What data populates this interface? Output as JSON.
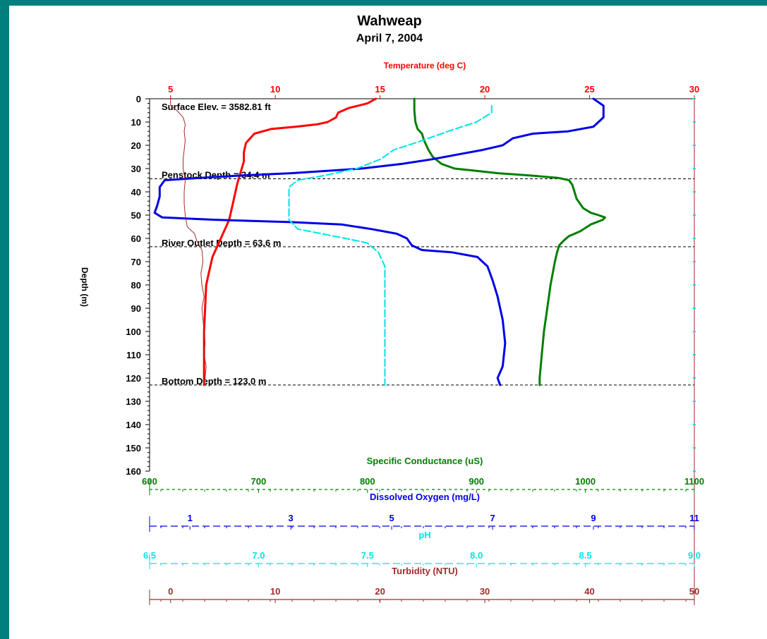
{
  "chart_data": {
    "type": "line",
    "title": "Wahweap",
    "subtitle": "April 7, 2004",
    "ylabel": "Depth (m)",
    "ylim": [
      0,
      160
    ],
    "y_ticks": [
      "0",
      "10",
      "20",
      "30",
      "40",
      "50",
      "60",
      "70",
      "80",
      "90",
      "100",
      "110",
      "120",
      "130",
      "140",
      "150",
      "160"
    ],
    "y_inverted": true,
    "annotations": [
      {
        "text": "Surface Elev. = 3582.81 ft",
        "depth": 3,
        "dashed_line": false
      },
      {
        "text": "Penstock Depth = 34.4 m",
        "depth": 34.4,
        "dashed_line": true
      },
      {
        "text": "River Outlet Depth = 63.6 m",
        "depth": 63.6,
        "dashed_line": true
      },
      {
        "text": "Bottom Depth = 123.0 m",
        "depth": 123.0,
        "dashed_line": true
      }
    ],
    "axes": {
      "temperature": {
        "label": "Temperature (deg C)",
        "min": 4,
        "max": 30,
        "ticks": [
          5,
          10,
          15,
          20,
          25,
          30
        ],
        "tick_labels": [
          "5",
          "10",
          "15",
          "20",
          "25",
          "30"
        ],
        "color": "#ff0000"
      },
      "conductance": {
        "label": "Specific Conductance (uS)",
        "min": 600,
        "max": 1100,
        "ticks": [
          600,
          700,
          800,
          900,
          1000,
          1100
        ],
        "tick_labels": [
          "600",
          "700",
          "800",
          "900",
          "1000",
          "1100"
        ],
        "color": "#007f00"
      },
      "oxygen": {
        "label": "Dissolved Oxygen (mg/L)",
        "min": 0.2,
        "max": 11,
        "ticks": [
          1,
          3,
          5,
          7,
          9,
          11
        ],
        "tick_labels": [
          "1",
          "3",
          "5",
          "7",
          "9",
          "11"
        ],
        "color": "#0000e6"
      },
      "ph": {
        "label": "pH",
        "min": 6.5,
        "max": 9.0,
        "ticks": [
          6.5,
          7.0,
          7.5,
          8.0,
          8.5,
          9.0
        ],
        "tick_labels": [
          "6.5",
          "7.0",
          "7.5",
          "8.0",
          "8.5",
          "9.0"
        ],
        "color": "#00e5e5"
      },
      "turbidity": {
        "label": "Turbidity (NTU)",
        "min": -2,
        "max": 50,
        "ticks": [
          0,
          10,
          20,
          30,
          40,
          50
        ],
        "tick_labels": [
          "0",
          "10",
          "20",
          "30",
          "40",
          "50"
        ],
        "color": "#a52a2a"
      }
    },
    "series": [
      {
        "name": "Temperature (deg C)",
        "axis": "temperature",
        "color": "#ff0000",
        "width": 3,
        "dash": "",
        "points": [
          [
            14.8,
            0
          ],
          [
            14.4,
            2
          ],
          [
            13.5,
            4
          ],
          [
            13.0,
            6
          ],
          [
            12.9,
            8
          ],
          [
            12.5,
            10
          ],
          [
            12.0,
            11
          ],
          [
            11.0,
            12
          ],
          [
            9.8,
            13
          ],
          [
            9.0,
            15
          ],
          [
            8.6,
            19
          ],
          [
            8.5,
            23
          ],
          [
            8.5,
            27
          ],
          [
            8.4,
            30
          ],
          [
            8.3,
            33
          ],
          [
            8.2,
            36
          ],
          [
            8.1,
            40
          ],
          [
            8.0,
            44
          ],
          [
            7.9,
            48
          ],
          [
            7.8,
            52
          ],
          [
            7.6,
            56
          ],
          [
            7.4,
            60
          ],
          [
            7.2,
            64
          ],
          [
            7.0,
            68
          ],
          [
            6.9,
            72
          ],
          [
            6.8,
            76
          ],
          [
            6.7,
            80
          ],
          [
            6.65,
            90
          ],
          [
            6.6,
            100
          ],
          [
            6.6,
            110
          ],
          [
            6.6,
            120
          ],
          [
            6.6,
            123
          ]
        ]
      },
      {
        "name": "Specific Conductance (uS)",
        "axis": "conductance",
        "color": "#007f00",
        "width": 3,
        "dash": "",
        "points": [
          [
            843,
            0
          ],
          [
            843,
            5
          ],
          [
            844,
            10
          ],
          [
            846,
            13
          ],
          [
            850,
            15
          ],
          [
            852,
            18
          ],
          [
            854,
            20
          ],
          [
            856,
            22
          ],
          [
            860,
            25
          ],
          [
            868,
            28
          ],
          [
            880,
            30
          ],
          [
            900,
            31
          ],
          [
            920,
            32
          ],
          [
            950,
            33
          ],
          [
            975,
            34
          ],
          [
            985,
            35
          ],
          [
            988,
            37
          ],
          [
            990,
            40
          ],
          [
            992,
            43
          ],
          [
            998,
            47
          ],
          [
            1005,
            49
          ],
          [
            1012,
            50
          ],
          [
            1018,
            51
          ],
          [
            1016,
            52
          ],
          [
            1005,
            54
          ],
          [
            995,
            57
          ],
          [
            985,
            59
          ],
          [
            980,
            61
          ],
          [
            976,
            63
          ],
          [
            974,
            66
          ],
          [
            972,
            70
          ],
          [
            970,
            75
          ],
          [
            968,
            80
          ],
          [
            965,
            90
          ],
          [
            962,
            100
          ],
          [
            960,
            110
          ],
          [
            958,
            120
          ],
          [
            958,
            123
          ]
        ]
      },
      {
        "name": "Dissolved Oxygen (mg/L)",
        "axis": "oxygen",
        "color": "#0000e6",
        "width": 3,
        "dash": "",
        "points": [
          [
            9.0,
            0
          ],
          [
            9.2,
            3
          ],
          [
            9.2,
            8
          ],
          [
            9.0,
            12
          ],
          [
            8.5,
            14
          ],
          [
            7.8,
            15
          ],
          [
            7.4,
            17
          ],
          [
            7.2,
            20
          ],
          [
            6.8,
            22
          ],
          [
            6.3,
            24
          ],
          [
            5.8,
            26
          ],
          [
            5.2,
            28
          ],
          [
            4.4,
            30
          ],
          [
            3.0,
            32
          ],
          [
            2.0,
            33
          ],
          [
            1.2,
            34
          ],
          [
            0.5,
            35
          ],
          [
            0.4,
            38
          ],
          [
            0.4,
            42
          ],
          [
            0.35,
            46
          ],
          [
            0.3,
            49
          ],
          [
            0.45,
            51
          ],
          [
            1.5,
            52
          ],
          [
            3.0,
            53
          ],
          [
            4.0,
            54
          ],
          [
            4.6,
            56
          ],
          [
            5.1,
            58
          ],
          [
            5.3,
            60
          ],
          [
            5.4,
            63
          ],
          [
            5.6,
            65
          ],
          [
            6.2,
            66
          ],
          [
            6.7,
            68
          ],
          [
            6.9,
            72
          ],
          [
            7.0,
            78
          ],
          [
            7.1,
            85
          ],
          [
            7.2,
            95
          ],
          [
            7.25,
            105
          ],
          [
            7.2,
            115
          ],
          [
            7.1,
            120
          ],
          [
            7.15,
            123
          ]
        ]
      },
      {
        "name": "pH",
        "axis": "ph",
        "color": "#00e5e5",
        "width": 2,
        "dash": "10,4",
        "points": [
          [
            8.07,
            3
          ],
          [
            8.07,
            6
          ],
          [
            8.0,
            10
          ],
          [
            7.87,
            14
          ],
          [
            7.75,
            18
          ],
          [
            7.62,
            22
          ],
          [
            7.56,
            26
          ],
          [
            7.45,
            30
          ],
          [
            7.3,
            33
          ],
          [
            7.18,
            35
          ],
          [
            7.14,
            38
          ],
          [
            7.14,
            45
          ],
          [
            7.14,
            52
          ],
          [
            7.18,
            56
          ],
          [
            7.4,
            60
          ],
          [
            7.5,
            62
          ],
          [
            7.55,
            66
          ],
          [
            7.58,
            72
          ],
          [
            7.58,
            80
          ],
          [
            7.58,
            90
          ],
          [
            7.58,
            100
          ],
          [
            7.58,
            110
          ],
          [
            7.58,
            120
          ],
          [
            7.58,
            123
          ]
        ]
      },
      {
        "name": "Turbidity (NTU)",
        "axis": "turbidity",
        "color": "#a52a2a",
        "width": 1,
        "dash": "",
        "points": [
          [
            0,
            0
          ],
          [
            0,
            3
          ],
          [
            0.6,
            5
          ],
          [
            1.2,
            8
          ],
          [
            1.4,
            11
          ],
          [
            1.3,
            14
          ],
          [
            1.4,
            18
          ],
          [
            1.3,
            22
          ],
          [
            1.2,
            26
          ],
          [
            1.2,
            30
          ],
          [
            1.4,
            35
          ],
          [
            1.3,
            40
          ],
          [
            1.3,
            45
          ],
          [
            1.4,
            50
          ],
          [
            1.6,
            55
          ],
          [
            2.3,
            58
          ],
          [
            2.5,
            61
          ],
          [
            3.0,
            65
          ],
          [
            3.1,
            70
          ],
          [
            2.9,
            75
          ],
          [
            3.0,
            80
          ],
          [
            3.2,
            85
          ],
          [
            3.0,
            90
          ],
          [
            3.1,
            95
          ],
          [
            3.2,
            100
          ],
          [
            3.3,
            105
          ],
          [
            3.2,
            110
          ],
          [
            3.4,
            115
          ],
          [
            3.3,
            120
          ],
          [
            3.2,
            123
          ]
        ]
      }
    ],
    "grid": false
  }
}
